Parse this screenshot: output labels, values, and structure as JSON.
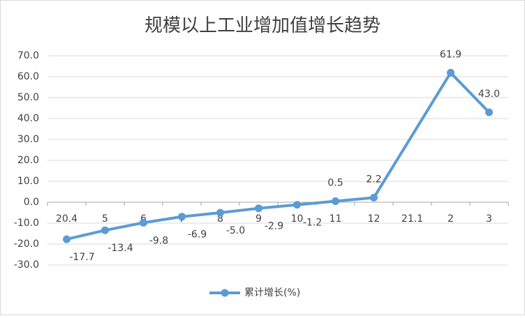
{
  "chart_data": {
    "type": "line",
    "title": "规模以上工业增加值增长趋势",
    "categories": [
      "20.4",
      "5",
      "6",
      "7",
      "8",
      "9",
      "10",
      "11",
      "12",
      "21.1",
      "2",
      "3"
    ],
    "series": [
      {
        "name": "累计增长(%)",
        "color": "#5b9bd5",
        "values": [
          -17.7,
          -13.4,
          -9.8,
          -6.9,
          -5.0,
          -2.9,
          -1.2,
          0.5,
          2.2,
          null,
          61.9,
          43.0
        ],
        "value_labels": [
          "-17.7",
          "-13.4",
          "-9.8",
          "-6.9",
          "-5.0",
          "-2.9",
          "-1.2",
          "0.5",
          "2.2",
          null,
          "61.9",
          "43.0"
        ]
      }
    ],
    "connect_gaps": true,
    "ylim": [
      -30,
      70
    ],
    "yticks": [
      {
        "value": -30,
        "label": "-30.0"
      },
      {
        "value": -20,
        "label": "-20.0"
      },
      {
        "value": -10,
        "label": "-10.0"
      },
      {
        "value": 0,
        "label": "0.0"
      },
      {
        "value": 10,
        "label": "10.0"
      },
      {
        "value": 20,
        "label": "20.0"
      },
      {
        "value": 30,
        "label": "30.0"
      },
      {
        "value": 40,
        "label": "40.0"
      },
      {
        "value": 50,
        "label": "50.0"
      },
      {
        "value": 60,
        "label": "60.0"
      },
      {
        "value": 70,
        "label": "70.0"
      }
    ],
    "grid": true,
    "legend": "bottom"
  }
}
